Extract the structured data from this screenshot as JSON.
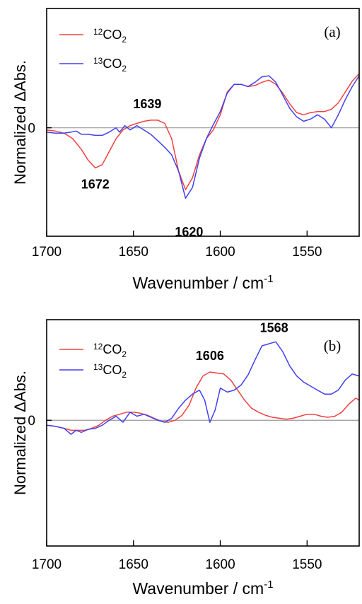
{
  "chart_data": [
    {
      "type": "line",
      "panel_label": "(a)",
      "xlabel": "Wavenumber / cm",
      "xlabel_sup": "-1",
      "ylabel": "Normalized ΔAbs.",
      "xlim": [
        1700,
        1520
      ],
      "ylim": [
        -1.0,
        1.1
      ],
      "x_ticks": [
        1700,
        1650,
        1600,
        1550
      ],
      "y_ticks": [
        0
      ],
      "zero_line": true,
      "legend_position": "top-left",
      "series": [
        {
          "name_prefix": "12",
          "name_base": "CO",
          "name_sub": "2",
          "color": "#f04040",
          "x": [
            1700,
            1695,
            1690,
            1685,
            1680,
            1676,
            1672,
            1668,
            1664,
            1660,
            1656,
            1652,
            1648,
            1644,
            1640,
            1636,
            1632,
            1628,
            1624,
            1620,
            1616,
            1612,
            1608,
            1604,
            1600,
            1596,
            1592,
            1588,
            1584,
            1580,
            1576,
            1572,
            1568,
            1564,
            1560,
            1556,
            1552,
            1548,
            1544,
            1540,
            1536,
            1532,
            1528,
            1524,
            1520
          ],
          "y": [
            -0.02,
            -0.03,
            -0.05,
            -0.1,
            -0.2,
            -0.3,
            -0.37,
            -0.34,
            -0.22,
            -0.1,
            -0.02,
            0.02,
            0.04,
            0.06,
            0.07,
            0.07,
            0.04,
            -0.1,
            -0.4,
            -0.57,
            -0.46,
            -0.25,
            -0.1,
            -0.02,
            0.12,
            0.33,
            0.4,
            0.4,
            0.38,
            0.39,
            0.42,
            0.44,
            0.4,
            0.32,
            0.22,
            0.14,
            0.12,
            0.14,
            0.15,
            0.15,
            0.17,
            0.23,
            0.33,
            0.43,
            0.5
          ]
        },
        {
          "name_prefix": "13",
          "name_base": "CO",
          "name_sub": "2",
          "color": "#4040f0",
          "x": [
            1700,
            1695,
            1690,
            1686,
            1683,
            1680,
            1676,
            1672,
            1668,
            1664,
            1660,
            1658,
            1655,
            1652,
            1648,
            1644,
            1640,
            1636,
            1632,
            1628,
            1624,
            1620,
            1616,
            1612,
            1608,
            1604,
            1600,
            1596,
            1592,
            1588,
            1584,
            1580,
            1576,
            1572,
            1568,
            1564,
            1560,
            1556,
            1552,
            1548,
            1544,
            1540,
            1536,
            1532,
            1528,
            1524,
            1520
          ],
          "y": [
            -0.04,
            -0.05,
            -0.05,
            -0.04,
            -0.03,
            -0.06,
            -0.06,
            -0.07,
            -0.07,
            -0.04,
            0.0,
            -0.04,
            0.02,
            -0.02,
            0.02,
            -0.02,
            -0.06,
            -0.12,
            -0.18,
            -0.25,
            -0.4,
            -0.65,
            -0.55,
            -0.28,
            -0.1,
            0.03,
            0.15,
            0.32,
            0.4,
            0.4,
            0.38,
            0.42,
            0.47,
            0.48,
            0.42,
            0.3,
            0.18,
            0.1,
            0.06,
            0.08,
            0.12,
            0.08,
            0.0,
            0.12,
            0.26,
            0.38,
            0.48
          ]
        }
      ],
      "annotations": [
        {
          "text": "1672",
          "x": 1672,
          "y": -0.52
        },
        {
          "text": "1639",
          "x": 1642,
          "y": 0.22
        },
        {
          "text": "1620",
          "x": 1618,
          "y": -0.96
        }
      ]
    },
    {
      "type": "line",
      "panel_label": "(b)",
      "xlabel": "Wavenumber / cm",
      "xlabel_sup": "-1",
      "ylabel": "Normalized ΔAbs.",
      "xlim": [
        1700,
        1520
      ],
      "ylim": [
        -1.25,
        1.0
      ],
      "x_ticks": [
        1700,
        1650,
        1600,
        1550
      ],
      "y_ticks": [
        0
      ],
      "zero_line": true,
      "legend_position": "top-left",
      "series": [
        {
          "name_prefix": "12",
          "name_base": "CO",
          "name_sub": "2",
          "color": "#f04040",
          "x": [
            1700,
            1695,
            1690,
            1686,
            1682,
            1678,
            1674,
            1670,
            1666,
            1662,
            1658,
            1654,
            1650,
            1646,
            1642,
            1638,
            1634,
            1630,
            1626,
            1622,
            1618,
            1614,
            1610,
            1606,
            1602,
            1598,
            1594,
            1590,
            1586,
            1582,
            1578,
            1574,
            1570,
            1566,
            1562,
            1558,
            1554,
            1550,
            1546,
            1542,
            1538,
            1534,
            1530,
            1526,
            1522,
            1520
          ],
          "y": [
            -0.05,
            -0.06,
            -0.08,
            -0.1,
            -0.1,
            -0.1,
            -0.08,
            -0.05,
            0.0,
            0.04,
            0.06,
            0.08,
            0.08,
            0.07,
            0.05,
            0.02,
            -0.01,
            -0.02,
            0.0,
            0.05,
            0.15,
            0.32,
            0.44,
            0.48,
            0.47,
            0.46,
            0.4,
            0.3,
            0.2,
            0.12,
            0.08,
            0.05,
            0.03,
            0.02,
            0.01,
            0.02,
            0.04,
            0.06,
            0.06,
            0.04,
            0.03,
            0.04,
            0.08,
            0.16,
            0.22,
            0.2
          ]
        },
        {
          "name_prefix": "13",
          "name_base": "CO",
          "name_sub": "2",
          "color": "#4040f0",
          "x": [
            1700,
            1695,
            1690,
            1686,
            1683,
            1680,
            1676,
            1672,
            1668,
            1664,
            1660,
            1656,
            1652,
            1648,
            1644,
            1640,
            1636,
            1632,
            1628,
            1624,
            1620,
            1616,
            1612,
            1609,
            1606,
            1603,
            1600,
            1596,
            1592,
            1588,
            1584,
            1580,
            1576,
            1572,
            1568,
            1564,
            1560,
            1556,
            1552,
            1548,
            1544,
            1540,
            1536,
            1532,
            1528,
            1524,
            1520
          ],
          "y": [
            -0.05,
            -0.06,
            -0.08,
            -0.14,
            -0.1,
            -0.12,
            -0.09,
            -0.08,
            -0.05,
            0.0,
            0.04,
            -0.02,
            0.08,
            0.04,
            0.06,
            0.03,
            0.0,
            -0.02,
            0.02,
            0.12,
            0.2,
            0.26,
            0.3,
            0.2,
            -0.02,
            0.1,
            0.32,
            0.28,
            0.3,
            0.35,
            0.45,
            0.6,
            0.74,
            0.76,
            0.78,
            0.68,
            0.54,
            0.44,
            0.38,
            0.34,
            0.3,
            0.26,
            0.26,
            0.3,
            0.4,
            0.46,
            0.44
          ]
        }
      ],
      "annotations": [
        {
          "text": "1606",
          "x": 1606,
          "y": 0.64
        },
        {
          "text": "1568",
          "x": 1569,
          "y": 0.92
        }
      ]
    }
  ]
}
